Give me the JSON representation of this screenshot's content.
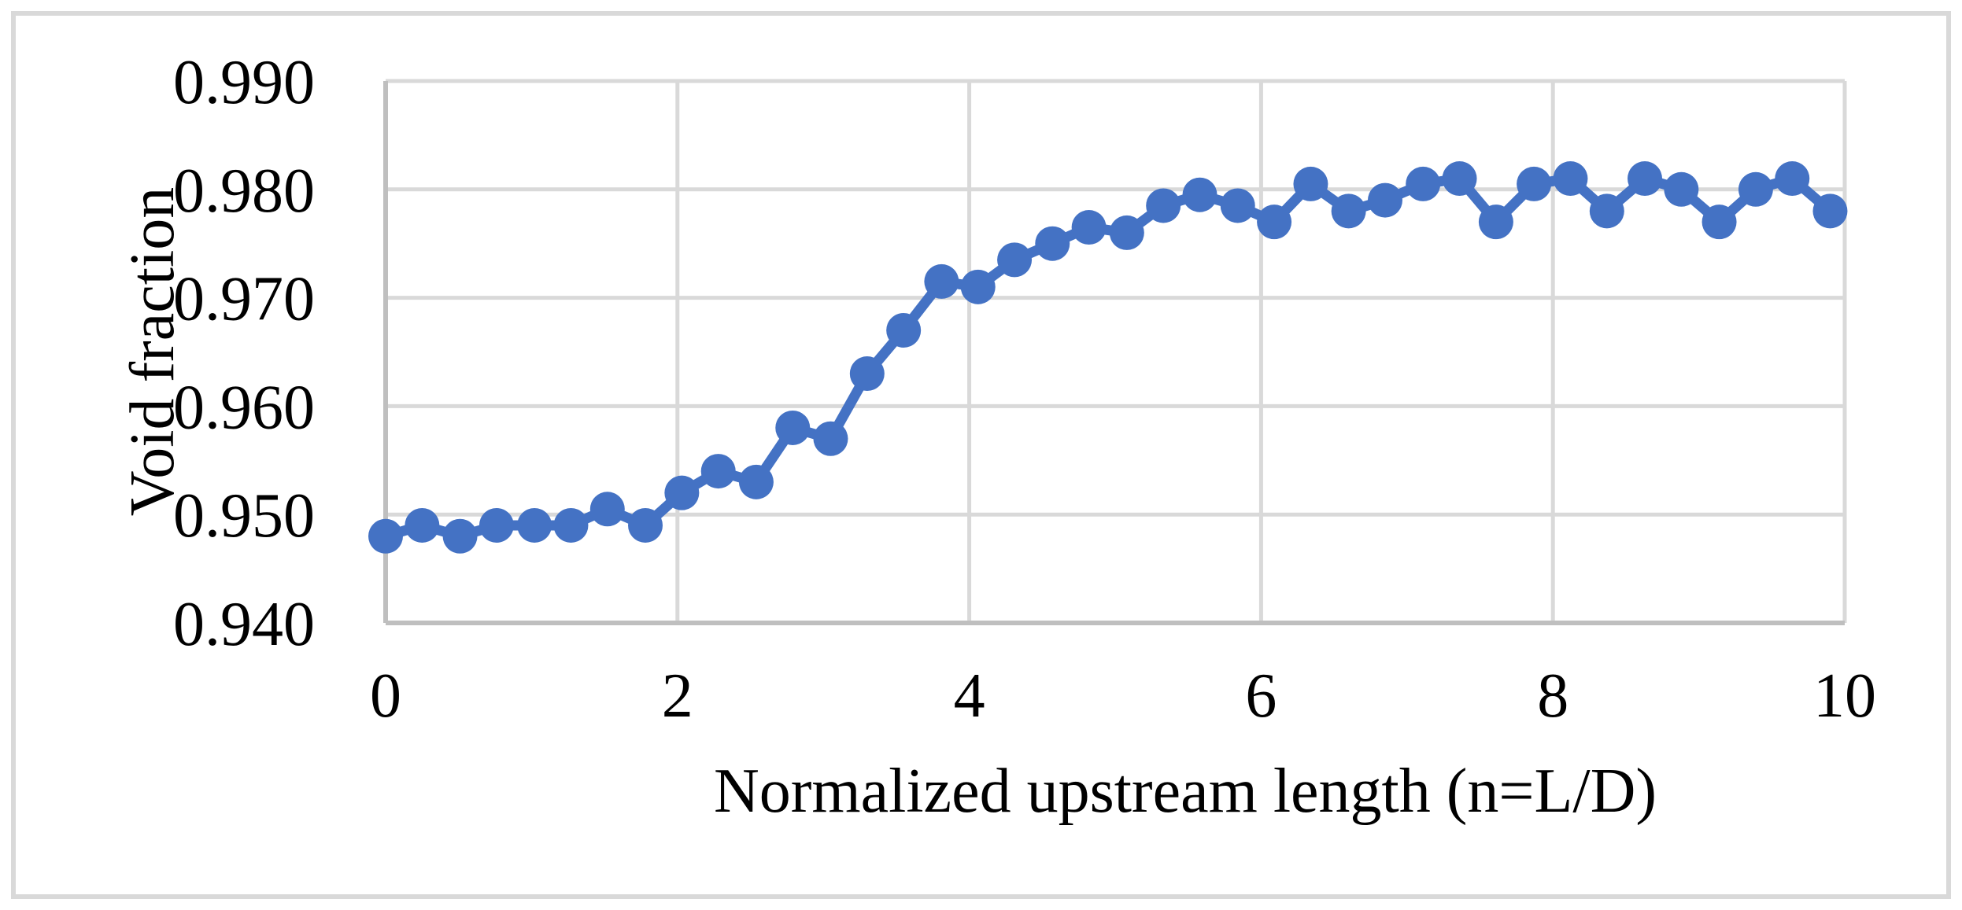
{
  "chart_data": {
    "type": "line",
    "title": "",
    "xlabel": "Normalized upstream length (n=L/D)",
    "ylabel": "Void fraction",
    "x": [
      0,
      0.25,
      0.51,
      0.76,
      1.02,
      1.27,
      1.52,
      1.78,
      2.03,
      2.28,
      2.54,
      2.79,
      3.05,
      3.3,
      3.55,
      3.81,
      4.06,
      4.31,
      4.57,
      4.82,
      5.08,
      5.33,
      5.58,
      5.84,
      6.09,
      6.34,
      6.6,
      6.85,
      7.11,
      7.36,
      7.61,
      7.87,
      8.12,
      8.37,
      8.63,
      8.88,
      9.14,
      9.39,
      9.64,
      9.9
    ],
    "y": [
      0.948,
      0.949,
      0.948,
      0.949,
      0.949,
      0.949,
      0.9505,
      0.949,
      0.952,
      0.954,
      0.953,
      0.958,
      0.957,
      0.963,
      0.967,
      0.9715,
      0.971,
      0.9735,
      0.975,
      0.9765,
      0.976,
      0.9785,
      0.9795,
      0.9785,
      0.977,
      0.9805,
      0.978,
      0.979,
      0.9805,
      0.981,
      0.977,
      0.9805,
      0.981,
      0.978,
      0.981,
      0.98,
      0.977,
      0.98,
      0.981,
      0.978
    ],
    "xlim": [
      0,
      10
    ],
    "ylim": [
      0.94,
      0.99
    ],
    "x_ticks": [
      0,
      2,
      4,
      6,
      8,
      10
    ],
    "x_tick_labels": [
      "0",
      "2",
      "4",
      "6",
      "8",
      "10"
    ],
    "y_ticks": [
      0.99,
      0.98,
      0.97,
      0.96,
      0.95,
      0.94
    ],
    "y_tick_labels": [
      "0.990",
      "0.980",
      "0.970",
      "0.960",
      "0.950",
      "0.940"
    ],
    "grid": true,
    "legend": false,
    "marker": "circle",
    "colors": {
      "series": "#4472C4",
      "gridline": "#D9D9D9",
      "axis_line": "#BFBFBF",
      "chart_border": "#D9D9D9",
      "text": "#000000",
      "background": "#FFFFFF"
    }
  }
}
